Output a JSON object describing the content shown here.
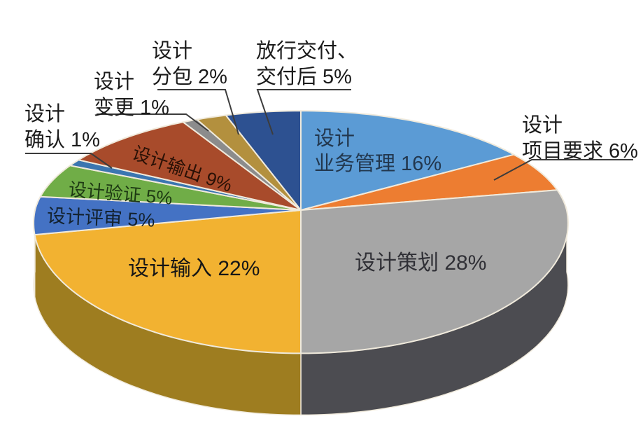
{
  "background": "#ffffff",
  "chart_data": {
    "type": "pie",
    "style": "3d",
    "title": "",
    "unit": "%",
    "start_angle_deg": 0,
    "direction": "clockwise",
    "legend": "none",
    "border_color": "#F0EADC",
    "leader_line_color": "#3C3C3C",
    "slices": [
      {
        "key": "design-business-management",
        "label": "设计业务管理",
        "value": 16,
        "color": "#5B9BD5",
        "label_placement": "inside",
        "label_color": "#22374E",
        "display_lines": [
          "设计",
          "业务管理 16%"
        ]
      },
      {
        "key": "design-project-requirements",
        "label": "设计项目要求",
        "value": 6,
        "color": "#ED7D31",
        "label_placement": "outside",
        "label_color": "#1B1B1B",
        "display_lines": [
          "设计",
          "项目要求 6%"
        ]
      },
      {
        "key": "design-planning",
        "label": "设计策划",
        "value": 28,
        "color": "#A6A6A6",
        "side_color": "#4C4C51",
        "label_placement": "inside",
        "label_color": "#303036",
        "display_lines": [
          "设计策划 28%"
        ]
      },
      {
        "key": "design-input",
        "label": "设计输入",
        "value": 22,
        "color": "#F2B231",
        "side_color": "#9E7D20",
        "label_placement": "inside",
        "label_color": "#161616",
        "display_lines": [
          "设计输入 22%"
        ]
      },
      {
        "key": "design-review",
        "label": "设计评审",
        "value": 5,
        "color": "#4472C4",
        "side_color": "#2B4C80",
        "label_placement": "inside",
        "label_color": "#13222F",
        "display_lines": [
          "设计评审 5%"
        ]
      },
      {
        "key": "design-verification",
        "label": "设计验证",
        "value": 5,
        "color": "#70AD47",
        "side_color": "#46702B",
        "label_placement": "inside",
        "label_color": "#1D3913",
        "display_lines": [
          "设计验证 5%"
        ]
      },
      {
        "key": "design-confirmation",
        "label": "设计确认",
        "value": 1,
        "color": "#3B76B0",
        "side_color": "#264D74",
        "label_placement": "outside",
        "label_color": "#1B1B1B",
        "display_lines": [
          "设计",
          "确认 1%"
        ]
      },
      {
        "key": "design-output",
        "label": "设计输出",
        "value": 9,
        "color": "#A84B2B",
        "side_color": "#6E3019",
        "label_placement": "inside",
        "label_color": "#2A1106",
        "display_lines": [
          "设计输出 9%"
        ]
      },
      {
        "key": "design-change",
        "label": "设计变更",
        "value": 1,
        "color": "#8C8C8C",
        "side_color": "#5A5A5A",
        "label_placement": "outside",
        "label_color": "#1B1B1B",
        "display_lines": [
          "设计",
          "变更 1%"
        ]
      },
      {
        "key": "design-subcontract",
        "label": "设计分包",
        "value": 2,
        "color": "#B3903E",
        "side_color": "#755D26",
        "label_placement": "outside",
        "label_color": "#1B1B1B",
        "display_lines": [
          "设计",
          "分包 2%"
        ]
      },
      {
        "key": "release-delivery-post-delivery",
        "label": "放行交付、交付后",
        "value": 5,
        "color": "#2D5191",
        "side_color": "#1C3560",
        "label_placement": "outside",
        "label_color": "#1B1B1B",
        "display_lines": [
          "放行交付、",
          "交付后 5%"
        ]
      }
    ]
  }
}
